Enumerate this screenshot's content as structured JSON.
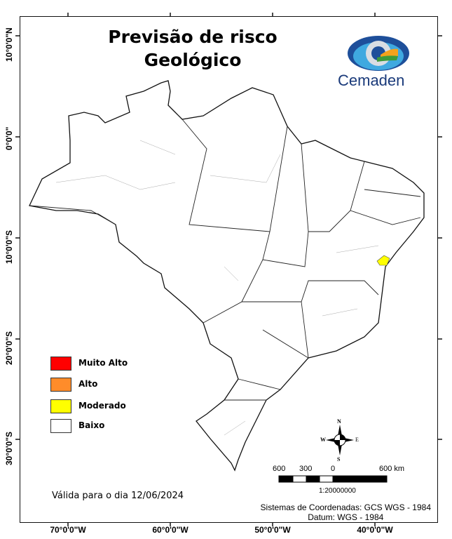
{
  "title": {
    "line1": "Previsão de risco",
    "line2": "Geológico"
  },
  "logo": {
    "text": "Cemaden"
  },
  "axes": {
    "longitude_labels": [
      "70°0'0\"W",
      "60°0'0\"W",
      "50°0'0\"W",
      "40°0'0\"W"
    ],
    "latitude_labels": [
      "10°0'0\"N",
      "0°0'0\"",
      "10°0'0\"S",
      "20°0'0\"S",
      "30°0'0\"S"
    ]
  },
  "legend": [
    {
      "label": "Muito Alto",
      "color": "#ff0000"
    },
    {
      "label": "Alto",
      "color": "#ff8c2a"
    },
    {
      "label": "Moderado",
      "color": "#ffff00"
    },
    {
      "label": "Baixo",
      "color": "#ffffff"
    }
  ],
  "risk_areas": [
    {
      "level": "Moderado",
      "region": "coastal Bahia/Sergipe"
    }
  ],
  "valid_date": "Válida para o dia 12/06/2024",
  "north_arrow": {
    "n": "N",
    "s": "S",
    "e": "E",
    "w": "W"
  },
  "scale": {
    "labels": [
      "600",
      "300",
      "0",
      "600 km"
    ],
    "ratio": "1:20000000"
  },
  "coordinate_system": "Sistemas de Coordenadas: GCS WGS - 1984",
  "datum": "Datum: WGS - 1984"
}
